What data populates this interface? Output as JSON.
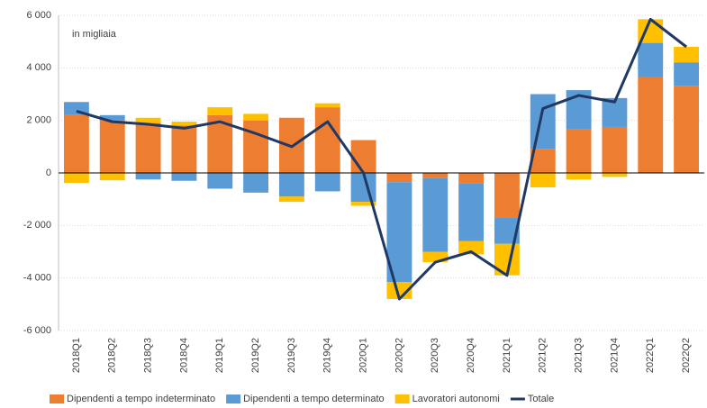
{
  "chart_data": {
    "type": "bar",
    "stacked": true,
    "annotation": "in migliaia",
    "categories": [
      "2018Q1",
      "2018Q2",
      "2018Q3",
      "2018Q4",
      "2019Q1",
      "2019Q2",
      "2019Q3",
      "2019Q4",
      "2020Q1",
      "2020Q2",
      "2020Q3",
      "2020Q4",
      "2021Q1",
      "2021Q2",
      "2021Q3",
      "2021Q4",
      "2022Q1",
      "2022Q2"
    ],
    "series": [
      {
        "name": "Dipendenti a tempo indeterminato",
        "color": "#ed7d31",
        "values": [
          2200,
          2000,
          1900,
          1800,
          2200,
          2000,
          2100,
          2500,
          1250,
          -350,
          -200,
          -400,
          -1700,
          900,
          1650,
          1750,
          3650,
          3300
        ]
      },
      {
        "name": "Dipendenti a tempo determinato",
        "color": "#5b9bd5",
        "values": [
          500,
          200,
          -250,
          -300,
          -600,
          -750,
          -900,
          -700,
          -1100,
          -3800,
          -2800,
          -2200,
          -1000,
          2100,
          1500,
          1100,
          1300,
          900
        ]
      },
      {
        "name": "Lavoratori autonomi",
        "color": "#ffc000",
        "values": [
          -380,
          -280,
          200,
          150,
          300,
          250,
          -200,
          150,
          -150,
          -650,
          -400,
          -500,
          -1200,
          -550,
          -250,
          -150,
          900,
          600
        ]
      },
      {
        "name": "Totale",
        "type": "line",
        "color": "#1f3864",
        "values": [
          2350,
          1950,
          1850,
          1700,
          1950,
          1500,
          1000,
          1950,
          0,
          -4800,
          -3400,
          -3000,
          -3900,
          2450,
          2950,
          2700,
          5850,
          4800
        ]
      }
    ],
    "ylim": [
      -6000,
      6000
    ],
    "yticks": [
      {
        "value": -6000,
        "label": "-6 000"
      },
      {
        "value": -4000,
        "label": "-4 000"
      },
      {
        "value": -2000,
        "label": "-2 000"
      },
      0,
      {
        "value": 2000,
        "label": "2 000"
      },
      {
        "value": 4000,
        "label": "4 000"
      },
      {
        "value": 6000,
        "label": "6 000"
      }
    ],
    "grid": true,
    "legend": "bottom"
  }
}
